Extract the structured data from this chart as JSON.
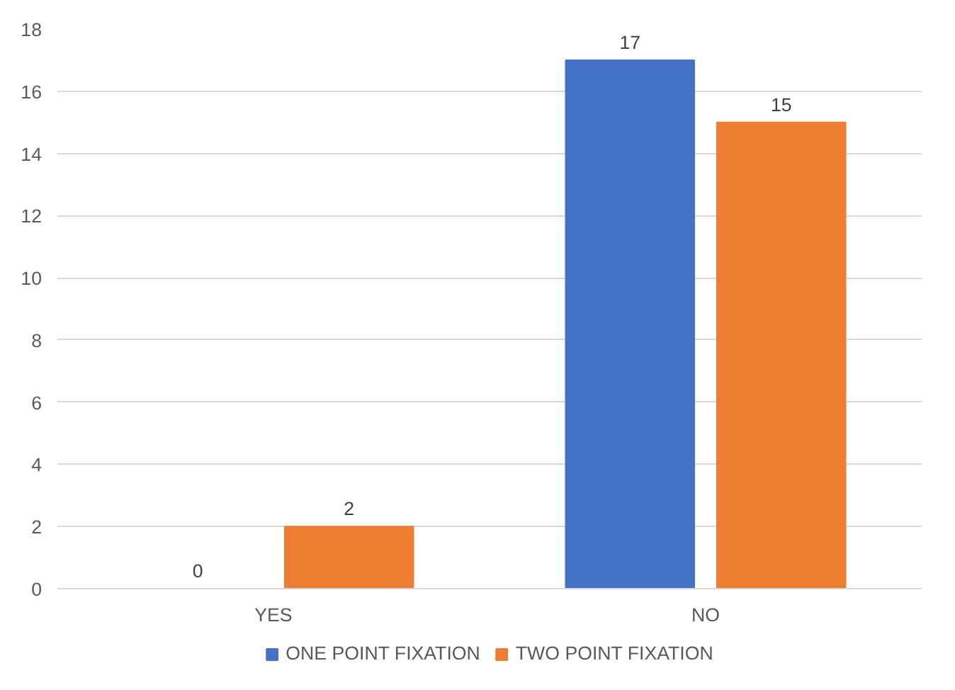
{
  "chart_data": {
    "type": "bar",
    "categories": [
      "YES",
      "NO"
    ],
    "series": [
      {
        "name": "ONE POINT FIXATION",
        "color": "#4472c4",
        "values": [
          0,
          17
        ]
      },
      {
        "name": "TWO POINT FIXATION",
        "color": "#ed7d31",
        "values": [
          2,
          15
        ]
      }
    ],
    "ylim": [
      0,
      18
    ],
    "yticks": [
      0,
      2,
      4,
      6,
      8,
      10,
      12,
      14,
      16,
      18
    ],
    "grid": "y",
    "legend": "bottom",
    "data_labels": true
  }
}
